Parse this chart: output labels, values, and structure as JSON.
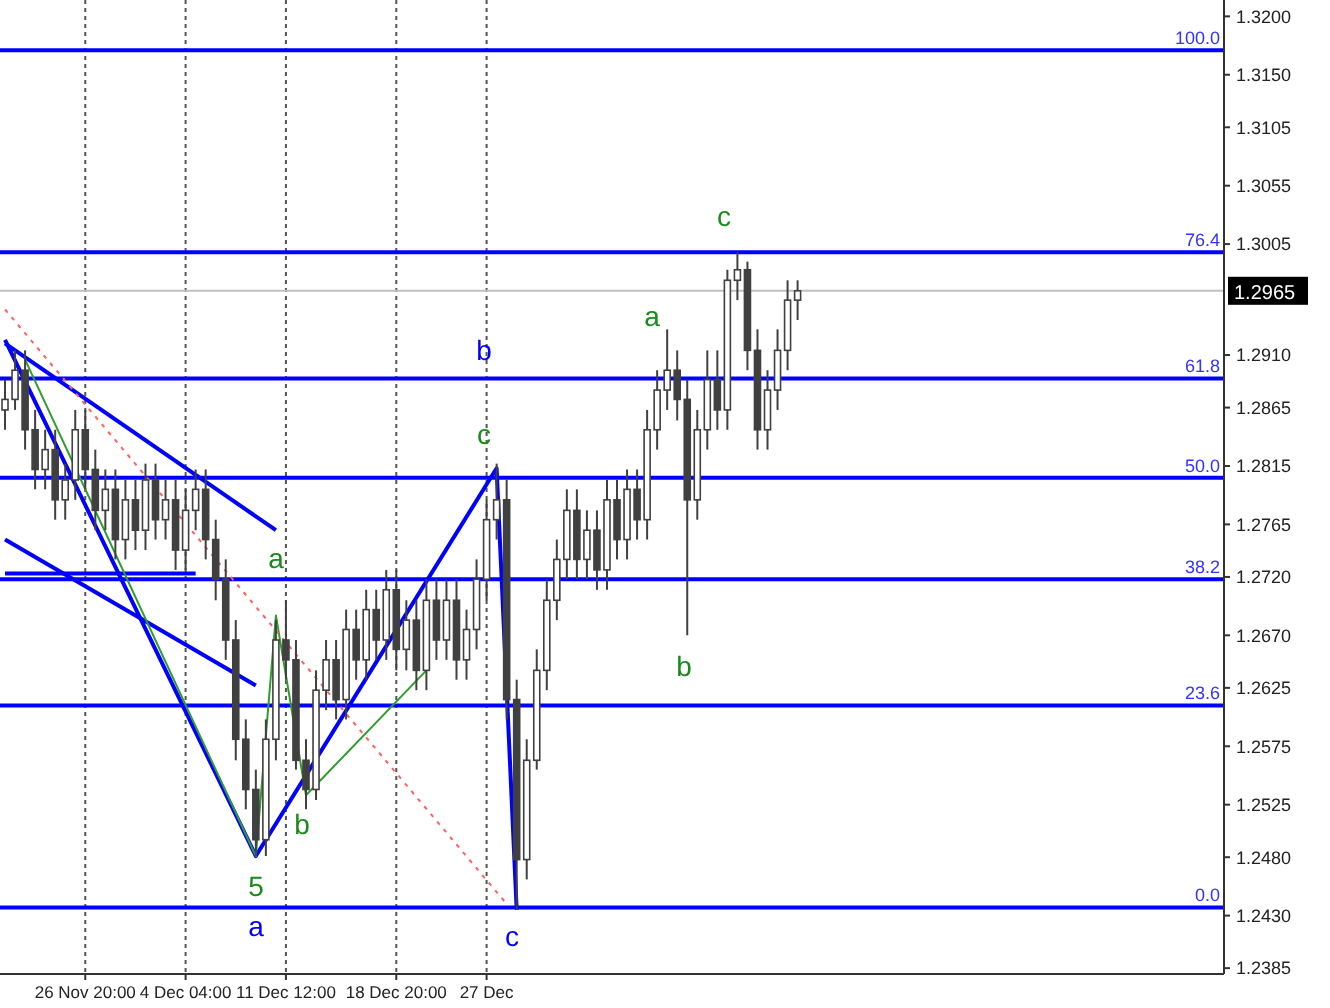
{
  "chart_data": {
    "type": "candlestick",
    "categories": [
      null,
      null,
      null,
      null,
      null,
      null,
      null,
      null,
      "26 Nov 20:00",
      null,
      null,
      null,
      null,
      null,
      null,
      null,
      null,
      null,
      "4 Dec 04:00",
      null,
      null,
      null,
      null,
      null,
      null,
      null,
      null,
      null,
      "11 Dec 12:00",
      null,
      null,
      null,
      null,
      null,
      null,
      null,
      null,
      null,
      null,
      "18 Dec 20:00",
      null,
      null,
      null,
      null,
      null,
      null,
      null,
      null,
      "27 Dec",
      null,
      null,
      null,
      null,
      null,
      null,
      null,
      null,
      null,
      null,
      null,
      null,
      null,
      null,
      null,
      null,
      null,
      null,
      null,
      null,
      null,
      null,
      null,
      null,
      null,
      null,
      null,
      null,
      null,
      null,
      null,
      null,
      null,
      null,
      null,
      null,
      null,
      null,
      null,
      null,
      null,
      null,
      null,
      null,
      null,
      null,
      null,
      null,
      null,
      null,
      null,
      null,
      null,
      null,
      null,
      null,
      null,
      null,
      null,
      null,
      null,
      null,
      null,
      null,
      null,
      null,
      null,
      null,
      null,
      null,
      null,
      null,
      null
    ],
    "ohlc": [
      [
        1.2863,
        1.2889,
        1.2846,
        1.2872
      ],
      [
        1.2872,
        1.2914,
        1.2863,
        1.2897
      ],
      [
        1.2897,
        1.2914,
        1.2829,
        1.2846
      ],
      [
        1.2846,
        1.2863,
        1.2795,
        1.2812
      ],
      [
        1.2812,
        1.2846,
        1.2795,
        1.2829
      ],
      [
        1.2829,
        1.2846,
        1.2769,
        1.2786
      ],
      [
        1.2786,
        1.2817,
        1.2769,
        1.2803
      ],
      [
        1.2803,
        1.2863,
        1.2786,
        1.2846
      ],
      [
        1.2846,
        1.2863,
        1.2795,
        1.2812
      ],
      [
        1.2812,
        1.2829,
        1.276,
        1.2777
      ],
      [
        1.2777,
        1.2812,
        1.276,
        1.2795
      ],
      [
        1.2795,
        1.2812,
        1.2735,
        1.2752
      ],
      [
        1.2752,
        1.2803,
        1.2735,
        1.2786
      ],
      [
        1.2786,
        1.2803,
        1.2743,
        1.276
      ],
      [
        1.276,
        1.2817,
        1.2743,
        1.2803
      ],
      [
        1.2803,
        1.2817,
        1.2752,
        1.2769
      ],
      [
        1.2769,
        1.2803,
        1.2752,
        1.2786
      ],
      [
        1.2786,
        1.2803,
        1.2726,
        1.2743
      ],
      [
        1.2743,
        1.2795,
        1.2726,
        1.2777
      ],
      [
        1.2777,
        1.2812,
        1.276,
        1.2795
      ],
      [
        1.2795,
        1.2812,
        1.2735,
        1.2752
      ],
      [
        1.2752,
        1.2769,
        1.27,
        1.2718
      ],
      [
        1.2718,
        1.2735,
        1.2649,
        1.2666
      ],
      [
        1.2666,
        1.2683,
        1.2563,
        1.2581
      ],
      [
        1.2581,
        1.2598,
        1.2521,
        1.2538
      ],
      [
        1.2538,
        1.2555,
        1.2481,
        1.2495
      ],
      [
        1.2495,
        1.2598,
        1.2481,
        1.2581
      ],
      [
        1.2581,
        1.2683,
        1.2563,
        1.2666
      ],
      [
        1.2666,
        1.27,
        1.2632,
        1.2649
      ],
      [
        1.2649,
        1.2666,
        1.2555,
        1.2563
      ],
      [
        1.2563,
        1.2581,
        1.2521,
        1.2538
      ],
      [
        1.2538,
        1.264,
        1.2529,
        1.2623
      ],
      [
        1.2623,
        1.2666,
        1.2606,
        1.2649
      ],
      [
        1.2649,
        1.2666,
        1.2598,
        1.2615
      ],
      [
        1.2615,
        1.2692,
        1.2598,
        1.2675
      ],
      [
        1.2675,
        1.2692,
        1.2632,
        1.2649
      ],
      [
        1.2649,
        1.2709,
        1.2632,
        1.2692
      ],
      [
        1.2692,
        1.2709,
        1.2649,
        1.2666
      ],
      [
        1.2666,
        1.2726,
        1.2649,
        1.2709
      ],
      [
        1.2709,
        1.2726,
        1.264,
        1.2658
      ],
      [
        1.2658,
        1.27,
        1.264,
        1.2683
      ],
      [
        1.2683,
        1.27,
        1.2623,
        1.264
      ],
      [
        1.264,
        1.2718,
        1.2623,
        1.27
      ],
      [
        1.27,
        1.2718,
        1.2649,
        1.2666
      ],
      [
        1.2666,
        1.2718,
        1.2649,
        1.27
      ],
      [
        1.27,
        1.2718,
        1.2632,
        1.2649
      ],
      [
        1.2649,
        1.2692,
        1.2632,
        1.2675
      ],
      [
        1.2675,
        1.2735,
        1.2658,
        1.2718
      ],
      [
        1.2718,
        1.2786,
        1.27,
        1.2769
      ],
      [
        1.2769,
        1.2817,
        1.2752,
        1.2786
      ],
      [
        1.2786,
        1.2803,
        1.2598,
        1.2615
      ],
      [
        1.2615,
        1.2632,
        1.2435,
        1.2478
      ],
      [
        1.2478,
        1.2581,
        1.2461,
        1.2563
      ],
      [
        1.2563,
        1.2658,
        1.2555,
        1.264
      ],
      [
        1.264,
        1.2718,
        1.2623,
        1.27
      ],
      [
        1.27,
        1.2752,
        1.2683,
        1.2735
      ],
      [
        1.2735,
        1.2795,
        1.2718,
        1.2777
      ],
      [
        1.2777,
        1.2795,
        1.2718,
        1.2735
      ],
      [
        1.2735,
        1.2777,
        1.2718,
        1.276
      ],
      [
        1.276,
        1.2777,
        1.2709,
        1.2726
      ],
      [
        1.2726,
        1.2803,
        1.2709,
        1.2786
      ],
      [
        1.2786,
        1.2803,
        1.2735,
        1.2752
      ],
      [
        1.2752,
        1.2812,
        1.2735,
        1.2795
      ],
      [
        1.2795,
        1.2812,
        1.2752,
        1.2769
      ],
      [
        1.2769,
        1.2863,
        1.2752,
        1.2846
      ],
      [
        1.2846,
        1.2897,
        1.2829,
        1.288
      ],
      [
        1.288,
        1.2932,
        1.2863,
        1.2897
      ],
      [
        1.2897,
        1.2914,
        1.2854,
        1.2872
      ],
      [
        1.2872,
        1.2889,
        1.267,
        1.2786
      ],
      [
        1.2786,
        1.2863,
        1.2769,
        1.2846
      ],
      [
        1.2846,
        1.2914,
        1.2829,
        1.2889
      ],
      [
        1.2889,
        1.2914,
        1.2846,
        1.2863
      ],
      [
        1.2863,
        1.2983,
        1.2846,
        1.2974
      ],
      [
        1.2974,
        1.2998,
        1.2957,
        1.2983
      ],
      [
        1.2983,
        1.299,
        1.2897,
        1.2914
      ],
      [
        1.2914,
        1.2932,
        1.2829,
        1.2846
      ],
      [
        1.2846,
        1.2897,
        1.2829,
        1.288
      ],
      [
        1.288,
        1.2932,
        1.2863,
        1.2914
      ],
      [
        1.2914,
        1.2974,
        1.2897,
        1.2957
      ],
      [
        1.2957,
        1.2974,
        1.294,
        1.2965
      ],
      null,
      null,
      null,
      null,
      null,
      null,
      null,
      null,
      null,
      null,
      null,
      null,
      null,
      null,
      null,
      null,
      null,
      null,
      null,
      null,
      null,
      null,
      null,
      null,
      null,
      null,
      null,
      null,
      null,
      null,
      null,
      null,
      null,
      null,
      null,
      null,
      null,
      null,
      null,
      null,
      null,
      null
    ],
    "color": "#404040",
    "series": [
      {
        "type": "line",
        "color": "#0000ff",
        "values": [
          1.2923,
          null,
          null,
          null,
          null,
          null,
          null,
          null,
          null,
          null,
          null,
          null,
          null,
          null,
          null,
          null,
          null,
          null,
          null,
          null,
          null,
          null,
          null,
          null,
          null,
          1.2481,
          null,
          null,
          null,
          null,
          null,
          null,
          null,
          null,
          null,
          null,
          null,
          null,
          null,
          null,
          null,
          null,
          null,
          null,
          null,
          null,
          null,
          null,
          null,
          1.2813,
          null,
          1.2435,
          null,
          null,
          null,
          null,
          null,
          null,
          null,
          null,
          null,
          null,
          null,
          null,
          null,
          null,
          null,
          null,
          null,
          null,
          null,
          null,
          null,
          null,
          null,
          null,
          null,
          null,
          null,
          null,
          null,
          null,
          null,
          null,
          null,
          null,
          null,
          null,
          null,
          null,
          null,
          null,
          null,
          null,
          null,
          null,
          null,
          null,
          null,
          null,
          null,
          null,
          null,
          null,
          null,
          null,
          null,
          null,
          null,
          null,
          null,
          null,
          null,
          null,
          null,
          null,
          null,
          null,
          null,
          null,
          null,
          null
        ]
      },
      {
        "type": "line",
        "color": "#0000ff",
        "values": [
          1.292,
          null,
          null,
          null,
          null,
          null,
          null,
          null,
          null,
          null,
          null,
          null,
          null,
          null,
          null,
          null,
          null,
          null,
          null,
          null,
          null,
          null,
          null,
          null,
          null,
          null,
          null,
          1.276,
          null,
          null,
          null,
          null,
          null,
          null,
          null,
          null,
          null,
          null,
          null,
          null,
          null,
          null,
          null,
          null,
          null,
          null,
          null,
          null,
          null,
          null,
          null,
          null,
          null,
          null,
          null,
          null,
          null,
          null,
          null,
          null,
          null,
          null,
          null,
          null,
          null,
          null,
          null,
          null,
          null,
          null,
          null,
          null,
          null,
          null,
          null,
          null,
          null,
          null,
          null,
          null,
          null,
          null,
          null,
          null,
          null,
          null,
          null,
          null,
          null,
          null,
          null,
          null,
          null,
          null,
          null,
          null,
          null,
          null,
          null,
          null,
          null,
          null,
          null,
          null,
          null,
          null,
          null,
          null,
          null,
          null,
          null,
          null,
          null,
          null,
          null,
          null,
          null,
          null,
          null,
          null,
          null,
          null
        ]
      },
      {
        "type": "line",
        "color": "#0000ff",
        "values": [
          1.2752,
          null,
          null,
          null,
          null,
          null,
          null,
          null,
          null,
          null,
          null,
          null,
          null,
          null,
          null,
          null,
          null,
          null,
          null,
          null,
          null,
          null,
          null,
          null,
          null,
          1.2627,
          null,
          null,
          null,
          null,
          null,
          null,
          null,
          null,
          null,
          null,
          null,
          null,
          null,
          null,
          null,
          null,
          null,
          null,
          null,
          null,
          null,
          null,
          null,
          null,
          null,
          null,
          null,
          null,
          null,
          null,
          null,
          null,
          null,
          null,
          null,
          null,
          null,
          null,
          null,
          null,
          null,
          null,
          null,
          null,
          null,
          null,
          null,
          null,
          null,
          null,
          null,
          null,
          null,
          null,
          null,
          null,
          null,
          null,
          null,
          null,
          null,
          null,
          null,
          null,
          null,
          null,
          null,
          null,
          null,
          null,
          null,
          null,
          null,
          null,
          null,
          null,
          null,
          null,
          null,
          null,
          null,
          null,
          null,
          null,
          null,
          null,
          null,
          null,
          null,
          null,
          null,
          null,
          null,
          null,
          null,
          null
        ]
      },
      {
        "type": "line",
        "color": "#0000ff",
        "values": [
          1.2723,
          null,
          null,
          null,
          null,
          null,
          null,
          null,
          null,
          null,
          null,
          null,
          null,
          null,
          null,
          null,
          null,
          null,
          null,
          1.2723,
          null,
          null,
          null,
          null,
          null,
          null,
          null,
          null,
          null,
          null,
          null,
          null,
          null,
          null,
          null,
          null,
          null,
          null,
          null,
          null,
          null,
          null,
          null,
          null,
          null,
          null,
          null,
          null,
          null,
          null,
          null,
          null,
          null,
          null,
          null,
          null,
          null,
          null,
          null,
          null,
          null,
          null,
          null,
          null,
          null,
          null,
          null,
          null,
          null,
          null,
          null,
          null,
          null,
          null,
          null,
          null,
          null,
          null,
          null,
          null,
          null,
          null,
          null,
          null,
          null,
          null,
          null,
          null,
          null,
          null,
          null,
          null,
          null,
          null,
          null,
          null,
          null,
          null,
          null,
          null,
          null,
          null,
          null,
          null,
          null,
          null,
          null,
          null,
          null,
          null,
          null,
          null,
          null,
          null,
          null,
          null,
          null,
          null,
          null,
          null,
          null,
          null
        ]
      },
      {
        "type": "line",
        "color": "#2e9e2e",
        "values": [
          null,
          null,
          1.2906,
          null,
          null,
          null,
          null,
          null,
          null,
          null,
          null,
          null,
          null,
          null,
          null,
          null,
          null,
          null,
          null,
          null,
          null,
          null,
          null,
          null,
          null,
          1.2481,
          null,
          1.2687,
          null,
          null,
          1.2533,
          null,
          null,
          null,
          null,
          null,
          null,
          null,
          null,
          null,
          null,
          null,
          1.264,
          null,
          null,
          null,
          null,
          null,
          null,
          null,
          null,
          null,
          null,
          null,
          null,
          null,
          null,
          null,
          null,
          null,
          null,
          null,
          null,
          null,
          null,
          null,
          null,
          null,
          null,
          null,
          null,
          null,
          null,
          null,
          null,
          null,
          null,
          null,
          null,
          null,
          null,
          null,
          null,
          null,
          null,
          null,
          null,
          null,
          null,
          null,
          null,
          null,
          null,
          null,
          null,
          null,
          null,
          null,
          null,
          null,
          null,
          null,
          null,
          null,
          null,
          null,
          null,
          null,
          null,
          null,
          null,
          null,
          null,
          null,
          null,
          null,
          null,
          null,
          null,
          null,
          null,
          null
        ]
      },
      {
        "type": "line",
        "color": "#ff6060",
        "line_style": "dotted",
        "values": [
          1.2949,
          null,
          null,
          null,
          null,
          null,
          null,
          null,
          null,
          null,
          null,
          null,
          null,
          null,
          null,
          null,
          null,
          null,
          null,
          null,
          null,
          null,
          null,
          null,
          null,
          null,
          null,
          null,
          null,
          null,
          null,
          null,
          null,
          null,
          null,
          null,
          null,
          null,
          null,
          null,
          null,
          null,
          null,
          null,
          null,
          null,
          null,
          null,
          null,
          null,
          1.244,
          null,
          null,
          null,
          null,
          null,
          null,
          null,
          null,
          null,
          null,
          null,
          null,
          null,
          null,
          null,
          null,
          null,
          null,
          null,
          null,
          null,
          null,
          null,
          null,
          null,
          null,
          null,
          null,
          null,
          null,
          null,
          null,
          null,
          null,
          null,
          null,
          null,
          null,
          null,
          null,
          null,
          null,
          null,
          null,
          null,
          null,
          null,
          null,
          null,
          null,
          null,
          null,
          null,
          null,
          null,
          null,
          null,
          null,
          null,
          null,
          null,
          null,
          null,
          null,
          null,
          null,
          null,
          null,
          null,
          null,
          null
        ]
      }
    ],
    "ylim": [
      1.238,
      1.3214
    ],
    "yticks": [
      {
        "value": 1.32,
        "label": "1.3200"
      },
      {
        "value": 1.315,
        "label": "1.3150"
      },
      {
        "value": 1.3105,
        "label": "1.3105"
      },
      {
        "value": 1.3055,
        "label": "1.3055"
      },
      {
        "value": 1.3005,
        "label": "1.3005"
      },
      {
        "value": 1.291,
        "label": "1.2910"
      },
      {
        "value": 1.2865,
        "label": "1.2865"
      },
      {
        "value": 1.2815,
        "label": "1.2815"
      },
      {
        "value": 1.2765,
        "label": "1.2765"
      },
      {
        "value": 1.272,
        "label": "1.2720"
      },
      {
        "value": 1.267,
        "label": "1.2670"
      },
      {
        "value": 1.2625,
        "label": "1.2625"
      },
      {
        "value": 1.2575,
        "label": "1.2575"
      },
      {
        "value": 1.2525,
        "label": "1.2525"
      },
      {
        "value": 1.248,
        "label": "1.2480"
      },
      {
        "value": 1.243,
        "label": "1.2430"
      },
      {
        "value": 1.2385,
        "label": "1.2385"
      }
    ],
    "grid": "x",
    "ref_lines": [
      {
        "axis": "y",
        "value": 1.3171,
        "color": "#0000ff"
      },
      {
        "axis": "y",
        "value": 1.2998,
        "color": "#0000ff"
      },
      {
        "axis": "y",
        "value": 1.289,
        "color": "#0000ff"
      },
      {
        "axis": "y",
        "value": 1.2805,
        "color": "#0000ff"
      },
      {
        "axis": "y",
        "value": 1.2718,
        "color": "#0000ff"
      },
      {
        "axis": "y",
        "value": 1.261,
        "color": "#0000ff"
      },
      {
        "axis": "y",
        "value": 1.2437,
        "color": "#0000ff"
      },
      {
        "axis": "y",
        "value": 1.2965,
        "label": "1.2965",
        "color": "#c0c0c0"
      }
    ],
    "annotations": [
      {
        "text": "100.0",
        "y": 1.3171
      },
      {
        "text": "76.4",
        "y": 1.2998
      },
      {
        "text": "61.8",
        "y": 1.289
      },
      {
        "text": "50.0",
        "y": 1.2805
      },
      {
        "text": "38.2",
        "y": 1.2718
      },
      {
        "text": "23.6",
        "y": 1.261
      },
      {
        "text": "0.0",
        "y": 1.2437
      },
      "c",
      "a",
      "b",
      "c",
      "b",
      "a",
      "b",
      "5",
      "a",
      "c"
    ]
  }
}
